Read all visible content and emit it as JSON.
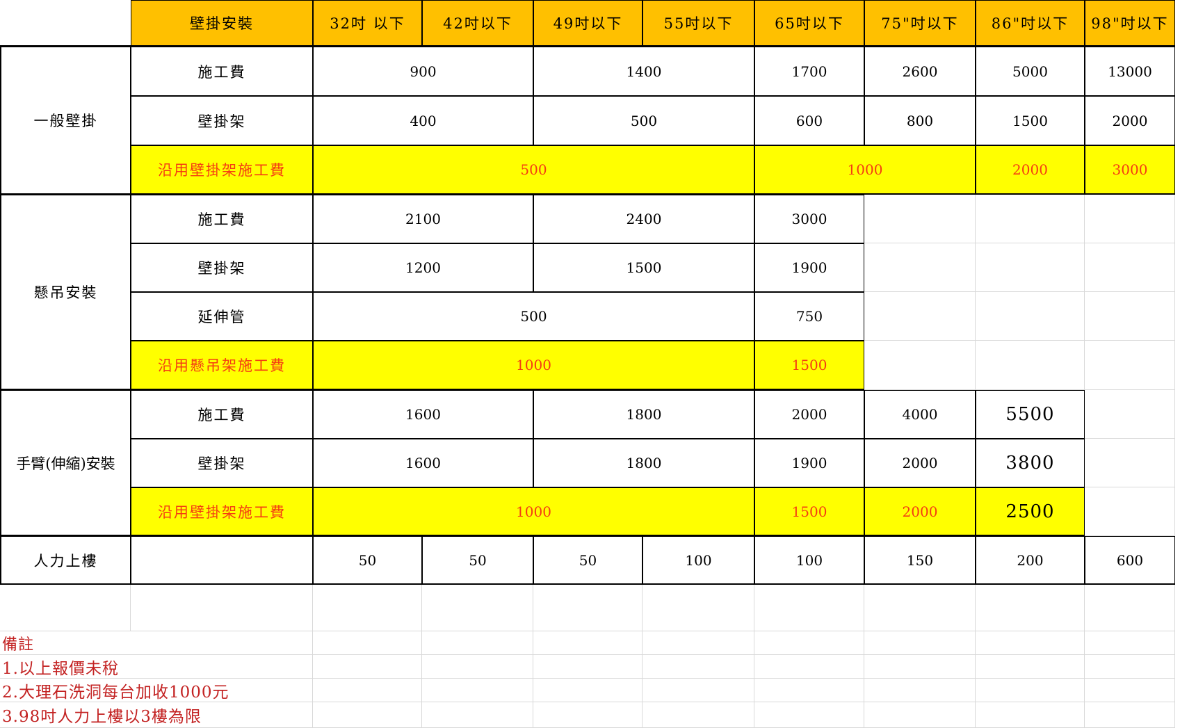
{
  "colors": {
    "header_bg": "#ffc000",
    "highlight_bg": "#ffff00",
    "highlight_text": "#f53c12",
    "note_text": "#c32222",
    "grid_black": "#000000",
    "grid_gray": "#d9d9d9"
  },
  "header": {
    "category_label": "壁掛安裝",
    "size_labels": [
      "32吋 以下",
      "42吋以下",
      "49吋以下",
      "55吋以下",
      "65吋以下",
      "75\"吋以下",
      "86\"吋以下",
      "98\"吋以下"
    ]
  },
  "groups": [
    {
      "label": "一般壁掛",
      "rows": [
        {
          "label": "施工費",
          "values": [
            "900",
            "1400",
            "1700",
            "2600",
            "5000",
            "13000"
          ]
        },
        {
          "label": "壁掛架",
          "values": [
            "400",
            "500",
            "600",
            "800",
            "1500",
            "2000"
          ]
        },
        {
          "label": "沿用壁掛架施工費",
          "highlight": true,
          "values": [
            "500",
            "1000",
            "2000",
            "3000"
          ]
        }
      ]
    },
    {
      "label": "懸吊安裝",
      "rows": [
        {
          "label": "施工費",
          "values": [
            "2100",
            "2400",
            "3000"
          ]
        },
        {
          "label": "壁掛架",
          "values": [
            "1200",
            "1500",
            "1900"
          ]
        },
        {
          "label": "延伸管",
          "values": [
            "500",
            "750"
          ]
        },
        {
          "label": "沿用懸吊架施工費",
          "highlight": true,
          "values": [
            "1000",
            "1500"
          ]
        }
      ]
    },
    {
      "label": "手臂(伸縮)安裝",
      "rows": [
        {
          "label": "施工費",
          "values": [
            "1600",
            "1800",
            "2000",
            "4000",
            "5500"
          ]
        },
        {
          "label": "壁掛架",
          "values": [
            "1600",
            "1800",
            "1900",
            "2000",
            "3800"
          ]
        },
        {
          "label": "沿用壁掛架施工費",
          "highlight": true,
          "values": [
            "1000",
            "1500",
            "2000",
            "2500"
          ]
        }
      ]
    }
  ],
  "carry": {
    "label": "人力上樓",
    "values": [
      "50",
      "50",
      "50",
      "100",
      "100",
      "150",
      "200",
      "600"
    ]
  },
  "notes": {
    "title": "備註",
    "items": [
      "1.以上報價未稅",
      "2.大理石洗洞每台加收1000元",
      "3.98吋人力上樓以3樓為限"
    ]
  }
}
